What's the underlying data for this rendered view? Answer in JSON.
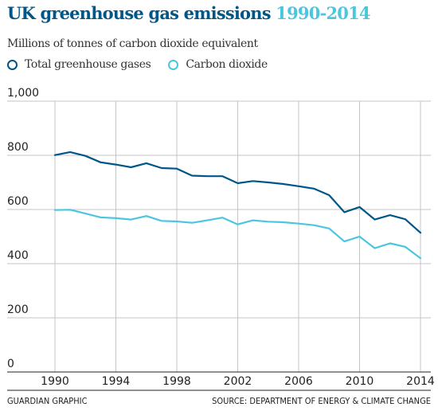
{
  "header": {
    "title": "UK greenhouse gas emissions",
    "title_years": "1990-2014",
    "subtitle": "Millions of tonnes of carbon dioxide equivalent"
  },
  "legend": [
    {
      "label": "Total greenhouse gases",
      "color": "#005689"
    },
    {
      "label": "Carbon dioxide",
      "color": "#4bc6df"
    }
  ],
  "footer": {
    "credit": "GUARDIAN GRAPHIC",
    "source": "SOURCE: DEPARTMENT OF ENERGY & CLIMATE CHANGE"
  },
  "chart_data": {
    "type": "line",
    "title": "UK greenhouse gas emissions 1990-2014",
    "ylabel": "Millions of tonnes of carbon dioxide equivalent",
    "xlabel": "",
    "ylim": [
      0,
      1000
    ],
    "xlim": [
      1990,
      2014
    ],
    "yticks": [
      0,
      200,
      400,
      600,
      800,
      1000
    ],
    "yticklabels": [
      "0",
      "200",
      "400",
      "600",
      "800",
      "1,000"
    ],
    "xticks": [
      1990,
      1994,
      1998,
      2002,
      2006,
      2010,
      2014
    ],
    "grid": true,
    "legend_position": "top-left",
    "x": [
      1990,
      1991,
      1992,
      1993,
      1994,
      1995,
      1996,
      1997,
      1998,
      1999,
      2000,
      2001,
      2002,
      2003,
      2004,
      2005,
      2006,
      2007,
      2008,
      2009,
      2010,
      2011,
      2012,
      2013,
      2014
    ],
    "series": [
      {
        "name": "Total greenhouse gases",
        "color": "#005689",
        "values": [
          801,
          812,
          798,
          774,
          766,
          756,
          771,
          753,
          751,
          725,
          723,
          723,
          697,
          705,
          700,
          694,
          686,
          677,
          653,
          590,
          609,
          563,
          579,
          564,
          514
        ]
      },
      {
        "name": "Carbon dioxide",
        "color": "#4bc6df",
        "values": [
          598,
          599,
          585,
          571,
          568,
          563,
          576,
          558,
          556,
          551,
          560,
          570,
          545,
          560,
          555,
          553,
          548,
          542,
          530,
          482,
          500,
          457,
          475,
          462,
          420
        ]
      }
    ]
  }
}
